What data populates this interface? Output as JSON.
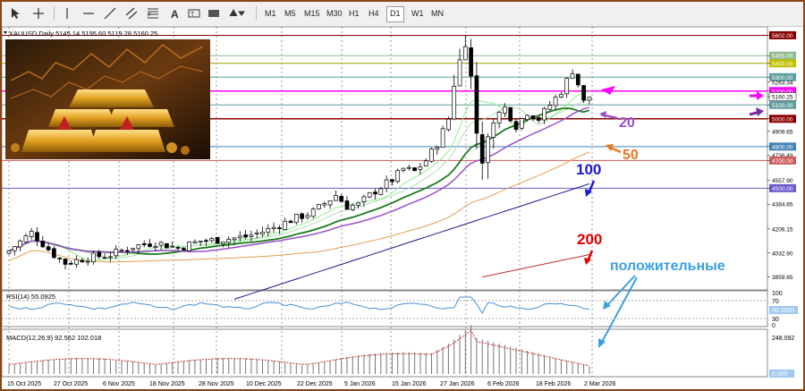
{
  "toolbar": {
    "timeframes": [
      "M1",
      "M5",
      "M15",
      "M30",
      "H1",
      "H4",
      "D1",
      "W1",
      "MN"
    ],
    "active_timeframe": "D1",
    "icons": [
      "cursor-icon",
      "crosshair-icon",
      "horizontal-line-icon",
      "trend-line-icon",
      "channel-icon",
      "fibonacci-icon",
      "text-icon",
      "shapes-icon",
      "arrows-icon"
    ]
  },
  "main_chart": {
    "symbol_info": "XAUUSD,Daily  5145.14 5195.60 5119.28 5160.25",
    "price_labels": [
      "5602.00",
      "5455.00",
      "5400.00",
      "5300.00",
      "5263.34",
      "5200.00",
      "5160.25",
      "5100.00",
      "5000.00",
      "4909.65",
      "4800.00",
      "4736.49",
      "4700.00",
      "4557.90",
      "4500.00",
      "4384.65",
      "4206.15",
      "4032.90",
      "3859.65"
    ],
    "ma_labels": {
      "ma20": "20",
      "ma50": "50",
      "ma100": "100",
      "ma200": "200"
    },
    "annotation": "положительные"
  },
  "rsi": {
    "label": "RSI(14) 55.0925",
    "scale": [
      "100",
      "70",
      "50.0000",
      "30",
      "0"
    ]
  },
  "macd": {
    "label": "MACD(12,26,9) 92.562 102.018",
    "scale": [
      "248.092",
      "0.000"
    ]
  },
  "time_axis": [
    "15 Oct 2025",
    "27 Oct 2025",
    "6 Nov 2025",
    "18 Nov 2025",
    "28 Nov 2025",
    "10 Dec 2025",
    "22 Dec 2025",
    "5 Jan 2026",
    "15 Jan 2026",
    "27 Jan 2026",
    "6 Feb 2026",
    "18 Feb 2026",
    "2 Mar 2026"
  ],
  "colors": {
    "ma20": "#1a7a1a",
    "ma20_light": "#90ee90",
    "ma50": "#e0a050",
    "ma100": "#1a1a8c",
    "ma200": "#c03030",
    "ma_purple": "#9b4fc9",
    "label_red": "#e00000",
    "label_orange": "#e87722",
    "label_blue": "#1a1ad4",
    "annotation": "#3aa0e0",
    "magenta": "#ff00ff"
  }
}
